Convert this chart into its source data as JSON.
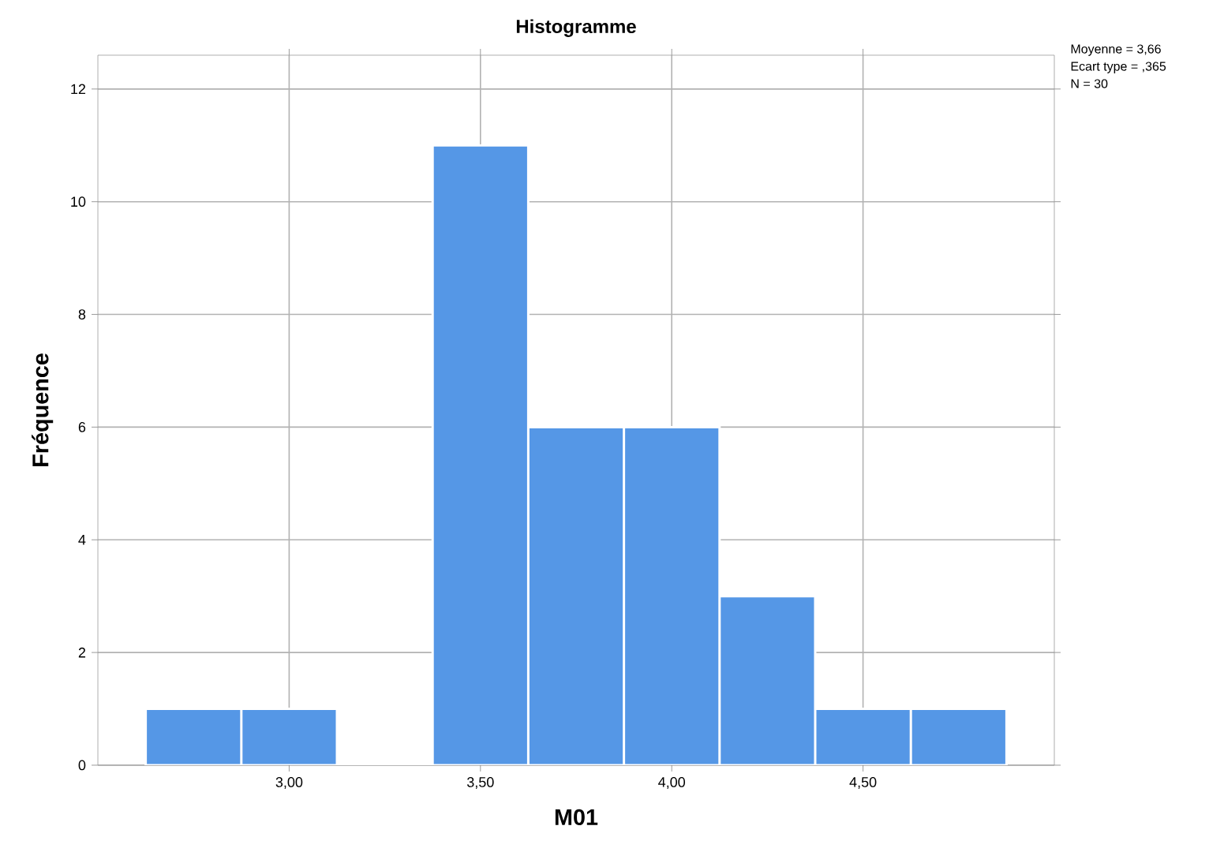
{
  "chart_data": {
    "type": "histogram",
    "title": "Histogramme",
    "xlabel": "M01",
    "ylabel": "Fréquence",
    "bins": [
      2.625,
      2.875,
      3.125,
      3.375,
      3.625,
      3.875,
      4.125,
      4.375,
      4.625,
      4.875
    ],
    "values": [
      1,
      1,
      0,
      11,
      6,
      6,
      3,
      1,
      1
    ],
    "color": "#5597e6",
    "xlim": [
      2.5,
      5.0
    ],
    "ylim": [
      0,
      12.6
    ],
    "xticks": [
      {
        "value": 3.0,
        "label": "3,00"
      },
      {
        "value": 3.5,
        "label": "3,50"
      },
      {
        "value": 4.0,
        "label": "4,00"
      },
      {
        "value": 4.5,
        "label": "4,50"
      }
    ],
    "yticks": [
      0,
      2,
      4,
      6,
      8,
      10,
      12
    ],
    "grid": true,
    "annotations": [
      "Moyenne = 3,66",
      "Ecart type = ,365",
      "N = 30"
    ]
  }
}
